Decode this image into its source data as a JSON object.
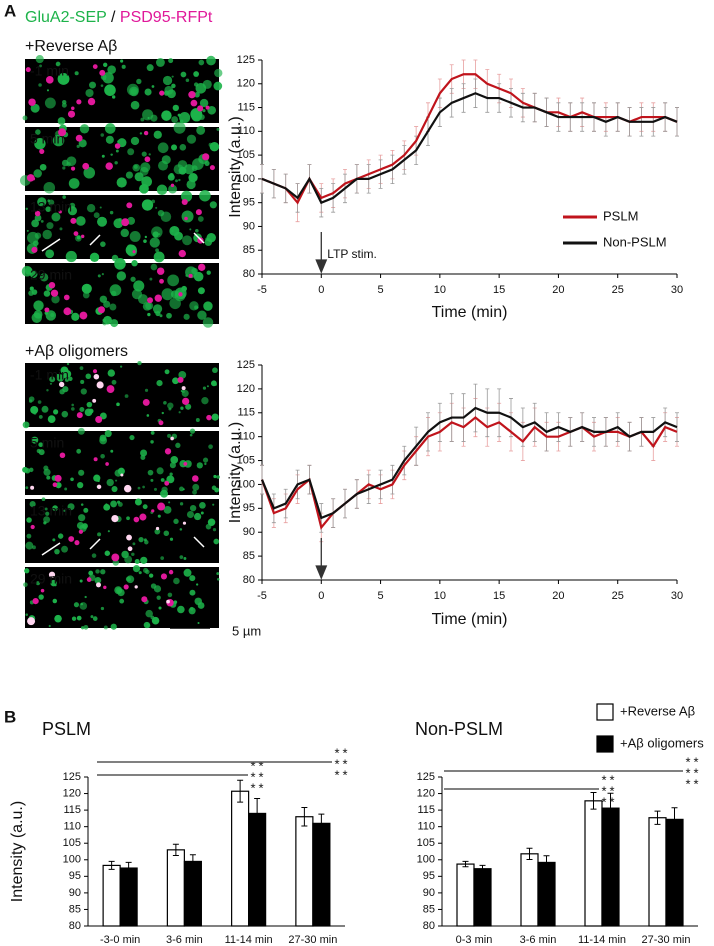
{
  "figure": {
    "panel_a": "A",
    "panel_b": "B",
    "channel_1": "GluA2-SEP",
    "separator": "/",
    "channel_2": "PSD95-RFPt",
    "channel_1_color": "#1db34a",
    "channel_2_color": "#e0189a",
    "groups": [
      {
        "name": "+Reverse Aβ",
        "time_labels": [
          "-1 min",
          "5 min",
          "13 min",
          "29 min"
        ]
      },
      {
        "name": "+Aβ oligomers",
        "time_labels": [
          "-1 min",
          "5 min",
          "13 min",
          "29 min"
        ]
      }
    ],
    "scale_bar": "5 µm"
  },
  "chart_data": [
    {
      "type": "line",
      "xlabel": "Time (min)",
      "ylabel": "Intensity (a.u.)",
      "annotation": "LTP stim.",
      "legend": "right",
      "x": [
        -5,
        -4,
        -3,
        -2,
        -1,
        0,
        1,
        2,
        3,
        4,
        5,
        6,
        7,
        8,
        9,
        10,
        11,
        12,
        13,
        14,
        15,
        16,
        17,
        18,
        19,
        20,
        21,
        22,
        23,
        24,
        25,
        26,
        27,
        28,
        29,
        30
      ],
      "xlim": [
        -5,
        30
      ],
      "xticks": [
        -5,
        0,
        5,
        10,
        15,
        20,
        25,
        30
      ],
      "ylim": [
        80,
        125
      ],
      "yticks": [
        80,
        85,
        90,
        95,
        100,
        105,
        110,
        115,
        120,
        125
      ],
      "series": [
        {
          "name": "PSLM",
          "color": "#c0141c",
          "error_color": "#e8a0a0",
          "values": [
            100,
            99,
            98,
            95,
            100,
            96,
            97,
            99,
            100,
            101,
            102,
            103,
            105,
            108,
            113,
            118,
            121,
            122,
            122,
            120,
            119,
            118,
            116,
            115,
            114,
            114,
            113,
            114,
            113,
            113,
            113,
            112,
            113,
            113,
            113,
            112
          ],
          "errors": [
            3,
            3,
            3,
            4,
            3,
            3,
            3,
            3,
            3,
            3,
            3,
            3,
            3,
            3,
            3,
            3,
            3,
            3,
            3,
            3,
            3,
            3,
            3,
            3,
            3,
            3,
            3,
            3,
            3,
            3,
            3,
            3,
            3,
            3,
            3,
            3
          ]
        },
        {
          "name": "Non-PSLM",
          "color": "#111111",
          "error_color": "#999999",
          "values": [
            100,
            99,
            98,
            96,
            100,
            95,
            96,
            98,
            100,
            100,
            101,
            102,
            104,
            106,
            110,
            114,
            116,
            117,
            118,
            117,
            117,
            116,
            115,
            115,
            114,
            113,
            113,
            113,
            113,
            112,
            113,
            112,
            112,
            112,
            113,
            112
          ],
          "errors": [
            3,
            3,
            3,
            3,
            3,
            3,
            3,
            3,
            3,
            3,
            3,
            3,
            3,
            3,
            3,
            3,
            3,
            3,
            3,
            3,
            3,
            3,
            3,
            3,
            3,
            3,
            3,
            3,
            3,
            3,
            3,
            3,
            3,
            3,
            3,
            3
          ]
        }
      ]
    },
    {
      "type": "line",
      "xlabel": "Time (min)",
      "ylabel": "Intensity (a.u.)",
      "x": [
        -5,
        -4,
        -3,
        -2,
        -1,
        0,
        1,
        2,
        3,
        4,
        5,
        6,
        7,
        8,
        9,
        10,
        11,
        12,
        13,
        14,
        15,
        16,
        17,
        18,
        19,
        20,
        21,
        22,
        23,
        24,
        25,
        26,
        27,
        28,
        29,
        30
      ],
      "xlim": [
        -5,
        30
      ],
      "xticks": [
        -5,
        0,
        5,
        10,
        15,
        20,
        25,
        30
      ],
      "ylim": [
        80,
        125
      ],
      "yticks": [
        80,
        85,
        90,
        95,
        100,
        105,
        110,
        115,
        120,
        125
      ],
      "series": [
        {
          "color": "#c0141c",
          "error_color": "#e8a0a0",
          "values": [
            101,
            94,
            95,
            99,
            101,
            91,
            94,
            96,
            98,
            100,
            99,
            100,
            104,
            107,
            110,
            111,
            113,
            112,
            114,
            112,
            113,
            111,
            109,
            112,
            110,
            110,
            111,
            112,
            110,
            111,
            111,
            110,
            111,
            108,
            112,
            111
          ],
          "errors": [
            3,
            3,
            3,
            3,
            3,
            3,
            3,
            3,
            3,
            3,
            3,
            3,
            3,
            3,
            4,
            4,
            4,
            4,
            4,
            4,
            4,
            4,
            4,
            4,
            3,
            3,
            3,
            3,
            3,
            3,
            3,
            3,
            3,
            3,
            3,
            3
          ]
        },
        {
          "color": "#111111",
          "error_color": "#999999",
          "values": [
            101,
            95,
            96,
            100,
            101,
            93,
            94,
            96,
            98,
            99,
            100,
            101,
            105,
            108,
            111,
            113,
            114,
            114,
            116,
            115,
            115,
            114,
            112,
            113,
            111,
            112,
            111,
            112,
            111,
            111,
            112,
            110,
            111,
            111,
            113,
            112
          ],
          "errors": [
            3,
            3,
            3,
            3,
            3,
            3,
            3,
            3,
            3,
            3,
            3,
            3,
            3,
            4,
            4,
            4,
            5,
            5,
            5,
            5,
            5,
            4,
            4,
            4,
            4,
            3,
            3,
            3,
            3,
            3,
            3,
            3,
            3,
            3,
            3,
            3
          ]
        }
      ]
    },
    {
      "type": "bar",
      "title": "PSLM",
      "ylabel": "Intensity (a.u.)",
      "categories": [
        "-3-0 min",
        "3-6 min",
        "11-14 min",
        "27-30 min"
      ],
      "ylim": [
        80,
        125
      ],
      "yticks": [
        80,
        85,
        90,
        95,
        100,
        105,
        110,
        115,
        120,
        125
      ],
      "series": [
        {
          "color": "#ffffff",
          "label_color": "#c0141c",
          "values": [
            98.3,
            103,
            120.7,
            113
          ],
          "errors": [
            1.2,
            1.7,
            3.3,
            2.8
          ]
        },
        {
          "color": "#000000",
          "label_color": "#333333",
          "values": [
            97.5,
            99.5,
            114,
            111
          ],
          "errors": [
            1.7,
            2,
            4.5,
            2.8
          ]
        }
      ],
      "significance": [
        [
          "***",
          "***"
        ],
        [
          "***",
          "***"
        ]
      ]
    },
    {
      "type": "bar",
      "title": "Non-PSLM",
      "legend": "top-right",
      "categories": [
        "0-3 min",
        "3-6 min",
        "11-14 min",
        "27-30 min"
      ],
      "ylim": [
        80,
        125
      ],
      "yticks": [
        80,
        85,
        90,
        95,
        100,
        105,
        110,
        115,
        120,
        125
      ],
      "series": [
        {
          "name": "+Reverse Aβ",
          "color": "#ffffff",
          "label_color": "#c0141c",
          "values": [
            98.7,
            101.8,
            117.8,
            112.7
          ],
          "errors": [
            0.8,
            1.7,
            2.5,
            2
          ]
        },
        {
          "name": "+Aβ oligomers",
          "color": "#000000",
          "label_color": "#333333",
          "values": [
            97.3,
            99.2,
            115.6,
            112.2
          ],
          "errors": [
            1,
            2,
            4.5,
            3.5
          ]
        }
      ],
      "significance": [
        [
          "***",
          "***"
        ],
        [
          "***",
          "***"
        ]
      ]
    }
  ]
}
